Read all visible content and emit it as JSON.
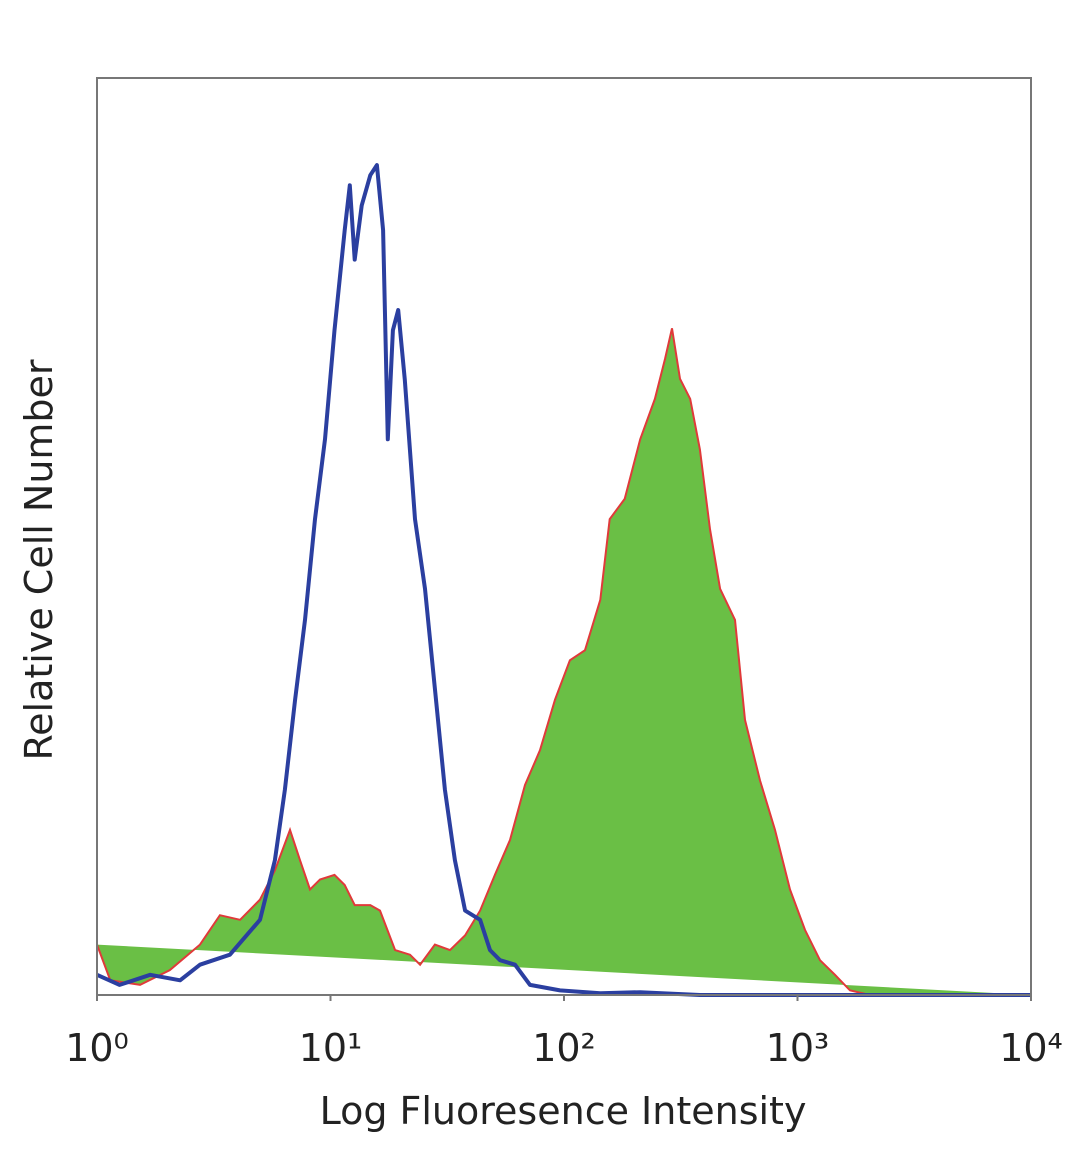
{
  "chart_data": {
    "type": "histogram-line",
    "xlabel": "Log Fluoresence Intensity",
    "ylabel": "Relative Cell Number",
    "xscale": "log",
    "xlim": [
      1,
      10000
    ],
    "ylim": [
      0,
      100
    ],
    "xticks": [
      {
        "value": 1,
        "label": "10⁰"
      },
      {
        "value": 10,
        "label": "10¹"
      },
      {
        "value": 100,
        "label": "10²"
      },
      {
        "value": 1000,
        "label": "10³"
      },
      {
        "value": 10000,
        "label": "10⁴"
      }
    ],
    "series": [
      {
        "color": "#6abf45",
        "edgecolor": "#e03a3a",
        "filled": true,
        "x": [
          1.0,
          1.14,
          1.53,
          2.05,
          2.76,
          3.36,
          4.1,
          4.99,
          5.78,
          6.71,
          7.4,
          8.17,
          9.02,
          10.4,
          11.5,
          12.7,
          14.8,
          16.3,
          18.9,
          21.9,
          24.2,
          28.0,
          32.5,
          37.7,
          43.7,
          50.6,
          58.7,
          68.1,
          78.9,
          91.5,
          106,
          123,
          143,
          157,
          182,
          212,
          245,
          271,
          290,
          314,
          347,
          382,
          422,
          466,
          540,
          596,
          691,
          801,
          929,
          1077,
          1248,
          1448,
          1679,
          2043,
          10000
        ],
        "values": [
          5.5,
          1.6,
          1.1,
          2.7,
          5.5,
          8.7,
          8.2,
          10.4,
          13.6,
          18.0,
          14.7,
          11.5,
          12.6,
          13.1,
          12.0,
          9.8,
          9.8,
          9.2,
          4.9,
          4.4,
          3.3,
          5.5,
          4.9,
          6.5,
          9.2,
          13.1,
          16.9,
          22.9,
          26.7,
          32.2,
          36.5,
          37.6,
          43.1,
          51.9,
          54.1,
          60.6,
          65.0,
          69.4,
          72.7,
          67.2,
          65.0,
          59.5,
          50.8,
          44.3,
          40.9,
          30.0,
          23.4,
          18.0,
          11.5,
          7.1,
          3.8,
          2.2,
          0.5,
          0,
          0
        ]
      },
      {
        "color": "#2b3fa0",
        "filled": false,
        "x": [
          1.0,
          1.25,
          1.69,
          2.27,
          2.76,
          3.71,
          4.99,
          5.78,
          6.38,
          7.05,
          7.78,
          8.58,
          9.47,
          10.4,
          11.5,
          12.1,
          12.7,
          13.6,
          14.8,
          15.8,
          16.8,
          17.6,
          18.5,
          19.5,
          20.8,
          23.0,
          25.4,
          28.0,
          30.9,
          34.1,
          37.7,
          43.7,
          48.2,
          53.2,
          61.7,
          71.5,
          96.1,
          143,
          212,
          382,
          10000
        ],
        "values": [
          2.2,
          1.1,
          2.2,
          1.6,
          3.3,
          4.4,
          8.2,
          14.7,
          22.4,
          32.2,
          40.9,
          51.9,
          60.6,
          72.5,
          83.4,
          88.3,
          80.2,
          86.1,
          89.4,
          90.5,
          83.4,
          60.6,
          72.5,
          74.7,
          67.1,
          51.9,
          44.3,
          33.4,
          22.4,
          14.7,
          9.2,
          8.2,
          4.9,
          3.8,
          3.3,
          1.1,
          0.5,
          0.2,
          0.3,
          0,
          0
        ]
      }
    ]
  }
}
